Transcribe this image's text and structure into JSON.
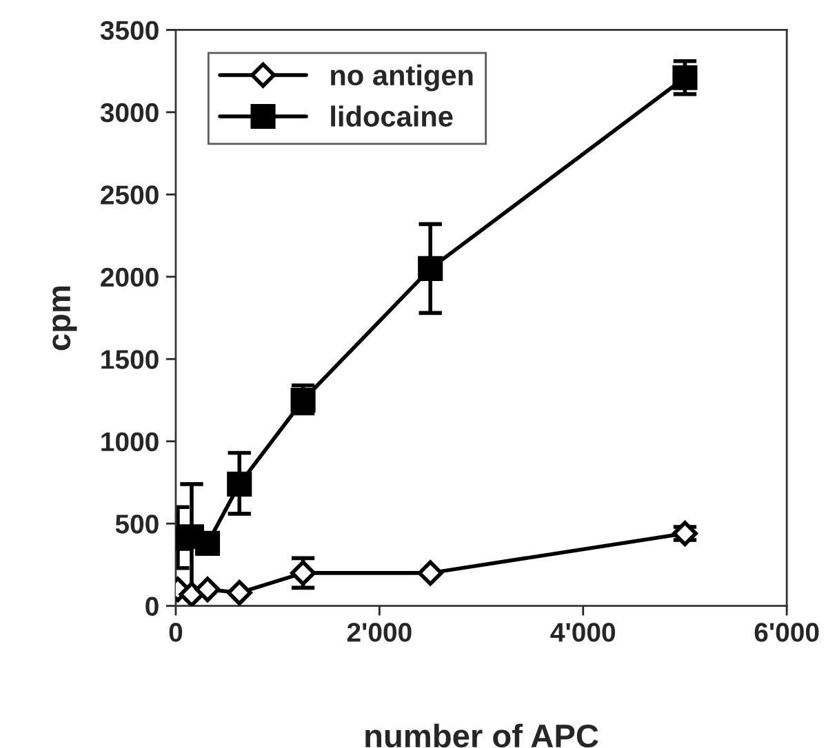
{
  "chart_data": {
    "type": "line",
    "xlabel": "number of APC",
    "ylabel": "cpm",
    "x": [
      20,
      156,
      312,
      625,
      1250,
      2500,
      5000
    ],
    "series": [
      {
        "name": "no antigen",
        "color": "#000000",
        "marker": "diamond",
        "values": [
          100,
          70,
          100,
          80,
          200,
          200,
          440
        ],
        "errors": [
          null,
          null,
          null,
          null,
          [
            110,
            290
          ],
          null,
          [
            400,
            480
          ]
        ]
      },
      {
        "name": "lidocaine",
        "color": "#000000",
        "marker": "square",
        "values": [
          410,
          420,
          380,
          740,
          1250,
          2050,
          3210
        ],
        "errors": [
          [
            230,
            600
          ],
          [
            100,
            740
          ],
          null,
          [
            560,
            930
          ],
          [
            1170,
            1340
          ],
          [
            1780,
            2320
          ],
          [
            3110,
            3310
          ]
        ]
      }
    ],
    "xlim": [
      0,
      6000
    ],
    "xticks": [
      0,
      {
        "value": 2000,
        "label": "2'000"
      },
      {
        "value": 4000,
        "label": "4'000"
      },
      {
        "value": 6000,
        "label": "6'000"
      }
    ],
    "ylim": [
      0,
      3500
    ],
    "yticks": [
      0,
      500,
      1000,
      1500,
      2000,
      2500,
      3000,
      3500
    ],
    "grid": false,
    "legend": "top left",
    "line_style": "solid"
  }
}
